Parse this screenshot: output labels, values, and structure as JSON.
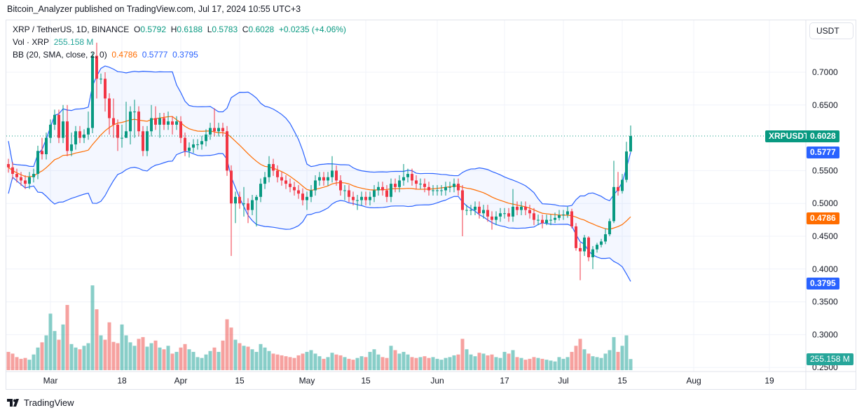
{
  "published": "Bitcoin_Analyzer published on TradingView.com, Jul 17, 2024 10:55 UTC+3",
  "legend": {
    "symbol": "XRP / TetherUS, 1D, BINANCE",
    "o_label": "O",
    "o": "0.5792",
    "h_label": "H",
    "h": "0.6188",
    "l_label": "L",
    "l": "0.5783",
    "c_label": "C",
    "c": "0.6028",
    "change": "+0.0235 (+4.06%)",
    "vol_label": "Vol · XRP",
    "vol": "255.158 M",
    "bb_label": "BB (20, SMA, close, 2, 0)",
    "bb_basis": "0.4786",
    "bb_upper": "0.5777",
    "bb_lower": "0.3795"
  },
  "price_axis": {
    "unit": "USDT",
    "ticks": [
      "0.7000",
      "0.6500",
      "0.5500",
      "0.5000",
      "0.4500",
      "0.4000",
      "0.3500",
      "0.3000",
      "0.2500"
    ]
  },
  "tags": {
    "symbol": "XRPUSDT",
    "last": "0.6028",
    "upper": "0.5777",
    "basis": "0.4786",
    "lower": "0.3795",
    "volume": "255.158 M"
  },
  "footer": {
    "brand": "TradingView"
  },
  "colors": {
    "up": "#089981",
    "down": "#f23645",
    "bb_band": "#2962ff",
    "bb_basis": "#ff6d00",
    "vol_up": "#26a69a",
    "vol_down": "#ef5350"
  },
  "chart_data": {
    "type": "candlestick",
    "interval": "1D",
    "first_date": "2024-02-20",
    "last_date": "2024-07-17",
    "ylim": [
      0.25,
      0.75
    ],
    "grid": true,
    "x_ticks": [
      {
        "label": "Mar",
        "date": "2024-03-01"
      },
      {
        "label": "18",
        "date": "2024-03-18"
      },
      {
        "label": "Apr",
        "date": "2024-04-01"
      },
      {
        "label": "15",
        "date": "2024-04-15"
      },
      {
        "label": "May",
        "date": "2024-05-01"
      },
      {
        "label": "15",
        "date": "2024-05-15"
      },
      {
        "label": "Jun",
        "date": "2024-06-01"
      },
      {
        "label": "17",
        "date": "2024-06-17"
      },
      {
        "label": "Jul",
        "date": "2024-07-01"
      },
      {
        "label": "15",
        "date": "2024-07-15"
      },
      {
        "label": "Aug",
        "date": "2024-08-01"
      },
      {
        "label": "19",
        "date": "2024-08-19"
      }
    ],
    "ohlc_columns": [
      "open",
      "high",
      "low",
      "close"
    ],
    "ohlc": [
      [
        0.56,
        0.568,
        0.547,
        0.555
      ],
      [
        0.555,
        0.563,
        0.537,
        0.545
      ],
      [
        0.545,
        0.553,
        0.532,
        0.54
      ],
      [
        0.54,
        0.548,
        0.527,
        0.535
      ],
      [
        0.535,
        0.543,
        0.522,
        0.53
      ],
      [
        0.53,
        0.548,
        0.522,
        0.54
      ],
      [
        0.54,
        0.553,
        0.532,
        0.545
      ],
      [
        0.545,
        0.588,
        0.537,
        0.58
      ],
      [
        0.58,
        0.6,
        0.567,
        0.575
      ],
      [
        0.575,
        0.608,
        0.567,
        0.6
      ],
      [
        0.6,
        0.628,
        0.592,
        0.62
      ],
      [
        0.62,
        0.643,
        0.612,
        0.635
      ],
      [
        0.635,
        0.643,
        0.592,
        0.6
      ],
      [
        0.6,
        0.65,
        0.592,
        0.625
      ],
      [
        0.625,
        0.65,
        0.572,
        0.58
      ],
      [
        0.58,
        0.608,
        0.572,
        0.59
      ],
      [
        0.59,
        0.618,
        0.582,
        0.61
      ],
      [
        0.61,
        0.618,
        0.592,
        0.6
      ],
      [
        0.6,
        0.613,
        0.592,
        0.605
      ],
      [
        0.605,
        0.64,
        0.597,
        0.615
      ],
      [
        0.615,
        0.73,
        0.607,
        0.725
      ],
      [
        0.725,
        0.745,
        0.66,
        0.69
      ],
      [
        0.69,
        0.698,
        0.682,
        0.69
      ],
      [
        0.69,
        0.7,
        0.64,
        0.66
      ],
      [
        0.66,
        0.668,
        0.605,
        0.63
      ],
      [
        0.63,
        0.66,
        0.6,
        0.62
      ],
      [
        0.62,
        0.628,
        0.58,
        0.6
      ],
      [
        0.6,
        0.62,
        0.585,
        0.6
      ],
      [
        0.6,
        0.655,
        0.6,
        0.61
      ],
      [
        0.61,
        0.648,
        0.59,
        0.64
      ],
      [
        0.64,
        0.658,
        0.6,
        0.64
      ],
      [
        0.64,
        0.648,
        0.602,
        0.61
      ],
      [
        0.61,
        0.618,
        0.572,
        0.58
      ],
      [
        0.58,
        0.618,
        0.572,
        0.61
      ],
      [
        0.61,
        0.65,
        0.602,
        0.63
      ],
      [
        0.63,
        0.648,
        0.612,
        0.62
      ],
      [
        0.62,
        0.638,
        0.6,
        0.63
      ],
      [
        0.63,
        0.638,
        0.612,
        0.62
      ],
      [
        0.62,
        0.64,
        0.612,
        0.625
      ],
      [
        0.625,
        0.633,
        0.605,
        0.62
      ],
      [
        0.62,
        0.633,
        0.612,
        0.625
      ],
      [
        0.625,
        0.633,
        0.592,
        0.6
      ],
      [
        0.6,
        0.608,
        0.572,
        0.58
      ],
      [
        0.58,
        0.593,
        0.57,
        0.585
      ],
      [
        0.585,
        0.598,
        0.577,
        0.59
      ],
      [
        0.59,
        0.598,
        0.582,
        0.59
      ],
      [
        0.59,
        0.603,
        0.582,
        0.595
      ],
      [
        0.595,
        0.613,
        0.587,
        0.605
      ],
      [
        0.605,
        0.623,
        0.597,
        0.615
      ],
      [
        0.615,
        0.645,
        0.602,
        0.61
      ],
      [
        0.61,
        0.623,
        0.602,
        0.615
      ],
      [
        0.615,
        0.623,
        0.602,
        0.61
      ],
      [
        0.61,
        0.618,
        0.542,
        0.55
      ],
      [
        0.55,
        0.558,
        0.42,
        0.5
      ],
      [
        0.5,
        0.518,
        0.47,
        0.51
      ],
      [
        0.51,
        0.518,
        0.492,
        0.5
      ],
      [
        0.5,
        0.525,
        0.48,
        0.5
      ],
      [
        0.5,
        0.508,
        0.47,
        0.49
      ],
      [
        0.49,
        0.513,
        0.482,
        0.505
      ],
      [
        0.505,
        0.513,
        0.465,
        0.51
      ],
      [
        0.51,
        0.538,
        0.502,
        0.53
      ],
      [
        0.53,
        0.548,
        0.522,
        0.54
      ],
      [
        0.54,
        0.572,
        0.532,
        0.56
      ],
      [
        0.56,
        0.568,
        0.542,
        0.55
      ],
      [
        0.55,
        0.558,
        0.532,
        0.54
      ],
      [
        0.54,
        0.548,
        0.527,
        0.535
      ],
      [
        0.535,
        0.543,
        0.522,
        0.53
      ],
      [
        0.53,
        0.538,
        0.517,
        0.525
      ],
      [
        0.525,
        0.533,
        0.512,
        0.52
      ],
      [
        0.52,
        0.528,
        0.507,
        0.515
      ],
      [
        0.515,
        0.523,
        0.497,
        0.505
      ],
      [
        0.505,
        0.518,
        0.49,
        0.51
      ],
      [
        0.51,
        0.528,
        0.502,
        0.52
      ],
      [
        0.52,
        0.543,
        0.512,
        0.535
      ],
      [
        0.535,
        0.548,
        0.527,
        0.54
      ],
      [
        0.54,
        0.548,
        0.527,
        0.535
      ],
      [
        0.535,
        0.548,
        0.527,
        0.54
      ],
      [
        0.54,
        0.572,
        0.532,
        0.55
      ],
      [
        0.55,
        0.558,
        0.527,
        0.535
      ],
      [
        0.535,
        0.543,
        0.512,
        0.52
      ],
      [
        0.52,
        0.528,
        0.505,
        0.52
      ],
      [
        0.52,
        0.528,
        0.502,
        0.51
      ],
      [
        0.51,
        0.518,
        0.497,
        0.505
      ],
      [
        0.505,
        0.513,
        0.49,
        0.505
      ],
      [
        0.505,
        0.518,
        0.497,
        0.51
      ],
      [
        0.51,
        0.518,
        0.497,
        0.505
      ],
      [
        0.505,
        0.518,
        0.497,
        0.51
      ],
      [
        0.51,
        0.528,
        0.502,
        0.52
      ],
      [
        0.52,
        0.533,
        0.512,
        0.525
      ],
      [
        0.525,
        0.533,
        0.512,
        0.52
      ],
      [
        0.52,
        0.528,
        0.502,
        0.51
      ],
      [
        0.51,
        0.538,
        0.502,
        0.53
      ],
      [
        0.53,
        0.538,
        0.517,
        0.525
      ],
      [
        0.525,
        0.543,
        0.517,
        0.535
      ],
      [
        0.535,
        0.56,
        0.527,
        0.54
      ],
      [
        0.54,
        0.553,
        0.532,
        0.545
      ],
      [
        0.545,
        0.553,
        0.527,
        0.535
      ],
      [
        0.535,
        0.543,
        0.522,
        0.53
      ],
      [
        0.53,
        0.538,
        0.522,
        0.53
      ],
      [
        0.53,
        0.538,
        0.517,
        0.525
      ],
      [
        0.525,
        0.533,
        0.512,
        0.52
      ],
      [
        0.52,
        0.528,
        0.512,
        0.52
      ],
      [
        0.52,
        0.528,
        0.512,
        0.52
      ],
      [
        0.52,
        0.528,
        0.512,
        0.52
      ],
      [
        0.52,
        0.533,
        0.512,
        0.525
      ],
      [
        0.525,
        0.533,
        0.517,
        0.525
      ],
      [
        0.525,
        0.538,
        0.517,
        0.53
      ],
      [
        0.53,
        0.538,
        0.512,
        0.52
      ],
      [
        0.52,
        0.528,
        0.45,
        0.49
      ],
      [
        0.49,
        0.498,
        0.482,
        0.49
      ],
      [
        0.49,
        0.498,
        0.482,
        0.49
      ],
      [
        0.49,
        0.503,
        0.482,
        0.495
      ],
      [
        0.495,
        0.503,
        0.477,
        0.485
      ],
      [
        0.485,
        0.498,
        0.477,
        0.49
      ],
      [
        0.49,
        0.498,
        0.472,
        0.48
      ],
      [
        0.48,
        0.488,
        0.46,
        0.475
      ],
      [
        0.475,
        0.488,
        0.467,
        0.48
      ],
      [
        0.48,
        0.493,
        0.472,
        0.485
      ],
      [
        0.485,
        0.493,
        0.477,
        0.485
      ],
      [
        0.485,
        0.493,
        0.472,
        0.48
      ],
      [
        0.48,
        0.522,
        0.472,
        0.495
      ],
      [
        0.495,
        0.503,
        0.482,
        0.49
      ],
      [
        0.49,
        0.503,
        0.482,
        0.495
      ],
      [
        0.495,
        0.503,
        0.482,
        0.49
      ],
      [
        0.49,
        0.498,
        0.477,
        0.485
      ],
      [
        0.485,
        0.493,
        0.467,
        0.475
      ],
      [
        0.475,
        0.483,
        0.467,
        0.475
      ],
      [
        0.475,
        0.483,
        0.462,
        0.47
      ],
      [
        0.47,
        0.483,
        0.467,
        0.475
      ],
      [
        0.475,
        0.483,
        0.467,
        0.475
      ],
      [
        0.475,
        0.486,
        0.47,
        0.478
      ],
      [
        0.478,
        0.49,
        0.474,
        0.482
      ],
      [
        0.482,
        0.49,
        0.475,
        0.483
      ],
      [
        0.483,
        0.495,
        0.478,
        0.488
      ],
      [
        0.488,
        0.492,
        0.462,
        0.465
      ],
      [
        0.465,
        0.47,
        0.428,
        0.432
      ],
      [
        0.432,
        0.44,
        0.383,
        0.427
      ],
      [
        0.427,
        0.452,
        0.42,
        0.448
      ],
      [
        0.448,
        0.45,
        0.412,
        0.418
      ],
      [
        0.418,
        0.435,
        0.4,
        0.43
      ],
      [
        0.43,
        0.44,
        0.425,
        0.437
      ],
      [
        0.437,
        0.446,
        0.433,
        0.442
      ],
      [
        0.442,
        0.462,
        0.438,
        0.453
      ],
      [
        0.453,
        0.477,
        0.45,
        0.473
      ],
      [
        0.473,
        0.565,
        0.47,
        0.525
      ],
      [
        0.525,
        0.548,
        0.512,
        0.519
      ],
      [
        0.519,
        0.545,
        0.515,
        0.536
      ],
      [
        0.536,
        0.594,
        0.532,
        0.5792
      ],
      [
        0.5792,
        0.6188,
        0.5783,
        0.6028
      ]
    ],
    "volume_unit": "M XRP",
    "volume": [
      420,
      380,
      300,
      260,
      280,
      240,
      360,
      520,
      640,
      800,
      1300,
      900,
      700,
      1050,
      1500,
      600,
      520,
      480,
      560,
      620,
      1950,
      1400,
      800,
      700,
      1100,
      650,
      620,
      1050,
      800,
      640,
      560,
      720,
      760,
      540,
      620,
      680,
      520,
      480,
      560,
      380,
      420,
      520,
      600,
      480,
      420,
      300,
      280,
      360,
      440,
      520,
      420,
      680,
      1170,
      980,
      700,
      620,
      560,
      540,
      480,
      420,
      600,
      520,
      440,
      380,
      360,
      340,
      320,
      300,
      280,
      340,
      380,
      420,
      460,
      380,
      320,
      260,
      300,
      400,
      360,
      340,
      300,
      260,
      240,
      280,
      320,
      300,
      420,
      480,
      360,
      300,
      280,
      560,
      460,
      380,
      420,
      360,
      300,
      280,
      300,
      320,
      280,
      300,
      260,
      240,
      280,
      300,
      340,
      360,
      720,
      480,
      360,
      320,
      400,
      380,
      340,
      360,
      300,
      280,
      420,
      380,
      460,
      300,
      280,
      240,
      260,
      300,
      280,
      260,
      240,
      220,
      200,
      300,
      260,
      300,
      420,
      560,
      720,
      480,
      380,
      320,
      300,
      280,
      380,
      460,
      760,
      420,
      560,
      800,
      255.158
    ],
    "indicators": [
      {
        "name": "BB",
        "length": 20,
        "ma": "SMA",
        "source": "close",
        "stddev": 2,
        "offset": 0
      }
    ]
  }
}
